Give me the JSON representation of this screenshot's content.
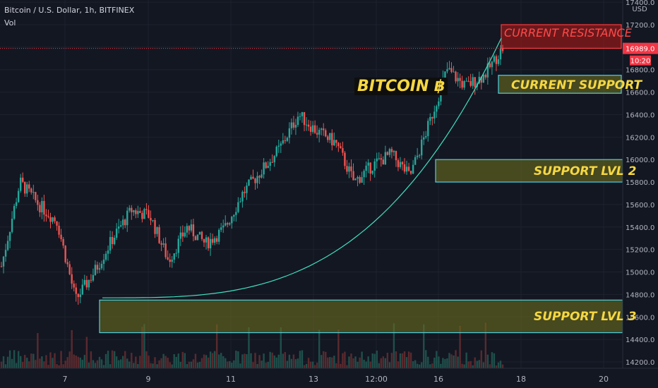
{
  "header": {
    "symbol_line": "Bitcoin / U.S. Dollar, 1h, BITFINEX",
    "volume_label": "Vol"
  },
  "price_axis": {
    "currency": "USD",
    "current_price": "16989.0",
    "countdown": "10:20",
    "ticks": [
      "17400.0",
      "17200.0",
      "17000.0",
      "16800.0",
      "16600.0",
      "16400.0",
      "16200.0",
      "16000.0",
      "15800.0",
      "15600.0",
      "15400.0",
      "15200.0",
      "15000.0",
      "14800.0",
      "14600.0",
      "14400.0",
      "14200.0"
    ]
  },
  "time_axis": {
    "ticks": [
      "7",
      "9",
      "11",
      "13",
      "12:00",
      "16",
      "18",
      "20"
    ]
  },
  "annotations": {
    "title": "BITCOIN ฿",
    "resistance": "CURRENT RESISTANCE",
    "current_support": "CURRENT SUPPORT",
    "support2": "SUPPORT LVL 2",
    "support3": "SUPPORT LVL 3"
  },
  "colors": {
    "background": "#131722",
    "up": "#26a69a",
    "down": "#ef5350",
    "zone_fill": "#6b6b1e",
    "zone_border": "#4dd0e1",
    "resistance_fill": "#8b1a1a",
    "resistance_border": "#ff3b3b",
    "annotation_text": "#f5d742",
    "price_tag": "#f23645"
  },
  "chart_data": {
    "type": "candlestick",
    "symbol": "Bitcoin / U.S. Dollar",
    "interval": "1h",
    "exchange": "BITFINEX",
    "y_range": [
      14150,
      17500
    ],
    "x_ticks": [
      "7",
      "9",
      "11",
      "13",
      "12:00",
      "16",
      "18",
      "20"
    ],
    "last_price": 16989.0,
    "close_path": [
      {
        "x": "6 Nov",
        "y": 15050
      },
      {
        "x": "6 Nov 12:00",
        "y": 15800
      },
      {
        "x": "7 Nov",
        "y": 15600
      },
      {
        "x": "7 Nov 12:00",
        "y": 15450
      },
      {
        "x": "7 Nov 18:00",
        "y": 14750
      },
      {
        "x": "8 Nov",
        "y": 15000
      },
      {
        "x": "8 Nov 12:00",
        "y": 15300
      },
      {
        "x": "9 Nov",
        "y": 15550
      },
      {
        "x": "9 Nov 12:00",
        "y": 15500
      },
      {
        "x": "9 Nov 18:00",
        "y": 15100
      },
      {
        "x": "10 Nov",
        "y": 15400
      },
      {
        "x": "10 Nov 12:00",
        "y": 15250
      },
      {
        "x": "11 Nov",
        "y": 15380
      },
      {
        "x": "11 Nov 12:00",
        "y": 15700
      },
      {
        "x": "12 Nov",
        "y": 15900
      },
      {
        "x": "12 Nov 12:00",
        "y": 16100
      },
      {
        "x": "13 Nov",
        "y": 16400
      },
      {
        "x": "13 Nov 12:00",
        "y": 16250
      },
      {
        "x": "14 Nov",
        "y": 16150
      },
      {
        "x": "14 Nov 12:00",
        "y": 15800
      },
      {
        "x": "15 Nov",
        "y": 15950
      },
      {
        "x": "15 Nov 12:00",
        "y": 16050
      },
      {
        "x": "16 Nov",
        "y": 15850
      },
      {
        "x": "16 Nov 12:00",
        "y": 16300
      },
      {
        "x": "17 Nov",
        "y": 16800
      },
      {
        "x": "17 Nov 06:00",
        "y": 16650
      },
      {
        "x": "17 Nov 12:00",
        "y": 16750
      },
      {
        "x": "17 Nov 18:00",
        "y": 16989
      }
    ],
    "zones": [
      {
        "label": "CURRENT RESISTANCE",
        "low": 16990,
        "high": 17200
      },
      {
        "label": "CURRENT SUPPORT",
        "low": 16590,
        "high": 16750
      },
      {
        "label": "SUPPORT LVL 2",
        "low": 15800,
        "high": 16000
      },
      {
        "label": "SUPPORT LVL 3",
        "low": 14460,
        "high": 14750
      }
    ]
  }
}
